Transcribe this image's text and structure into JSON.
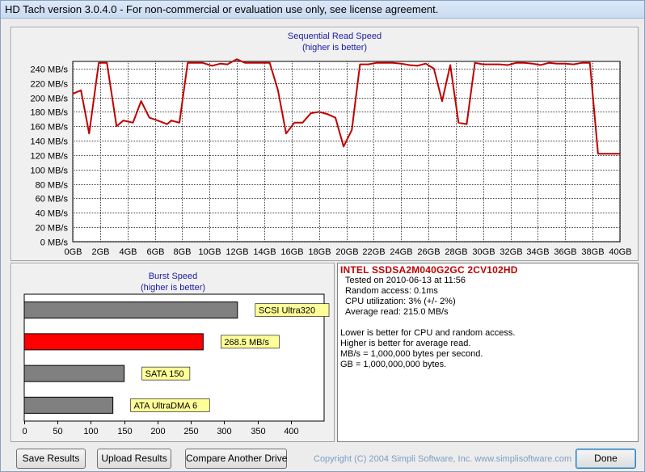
{
  "window": {
    "title": "HD Tach version 3.0.4.0  - For non-commercial or evaluation use only, see license agreement."
  },
  "sequential": {
    "title_line1": "Sequential Read Speed",
    "title_line2": "(higher is better)"
  },
  "burst": {
    "title_line1": "Burst Speed",
    "title_line2": "(higher is better)"
  },
  "info": {
    "drive_name": "INTEL SSDSA2M040G2GC 2CV102HD",
    "tested_on": "Tested on 2010-06-13 at 11:56",
    "random_access": "Random access: 0.1ms",
    "cpu_utilization": "CPU utilization: 3% (+/- 2%)",
    "average_read": "Average read: 215.0 MB/s",
    "note1": "Lower is better for CPU and random access.",
    "note2": "Higher is better for average read.",
    "note3": "MB/s = 1,000,000 bytes per second.",
    "note4": "GB = 1,000,000,000 bytes."
  },
  "buttons": {
    "save_results": "Save Results",
    "upload_results": "Upload Results",
    "compare_drive": "Compare Another Drive",
    "done": "Done"
  },
  "copyright": "Copyright (C) 2004 Simpli Software, Inc. www.simplisoftware.com",
  "colors": {
    "line": "#c00000",
    "bar_highlight": "#ff0000",
    "bar_reference": "#808080",
    "label_bg": "#ffff99",
    "grid": "#404040"
  },
  "chart_data": [
    {
      "type": "line",
      "title": "Sequential Read Speed",
      "subtitle": "(higher is better)",
      "xlabel": "",
      "ylabel": "",
      "x_unit": "GB",
      "y_unit": "MB/s",
      "xlim": [
        0,
        40
      ],
      "ylim": [
        0,
        250
      ],
      "x_ticks": [
        "0GB",
        "2GB",
        "4GB",
        "6GB",
        "8GB",
        "10GB",
        "12GB",
        "14GB",
        "16GB",
        "18GB",
        "20GB",
        "22GB",
        "24GB",
        "26GB",
        "28GB",
        "30GB",
        "32GB",
        "34GB",
        "36GB",
        "38GB",
        "40GB"
      ],
      "y_ticks": [
        "0 MB/s",
        "20 MB/s",
        "40 MB/s",
        "60 MB/s",
        "80 MB/s",
        "100 MB/s",
        "120 MB/s",
        "140 MB/s",
        "160 MB/s",
        "180 MB/s",
        "200 MB/s",
        "220 MB/s",
        "240 MB/s"
      ],
      "grid": true,
      "series": [
        {
          "x": [
            0,
            0.6,
            1.2,
            1.9,
            2.5,
            3.2,
            3.7,
            4.4,
            5.0,
            5.6,
            6.2,
            6.9,
            7.2,
            7.8,
            8.4,
            9.0,
            9.5,
            10.2,
            10.8,
            11.3,
            12.0,
            12.6,
            13.2,
            13.8,
            14.4,
            15.0,
            15.6,
            16.2,
            16.8,
            17.4,
            18.0,
            18.6,
            19.2,
            19.8,
            20.4,
            21.0,
            21.6,
            22.2,
            22.8,
            23.4,
            24.0,
            24.6,
            25.2,
            25.8,
            26.4,
            27.0,
            27.6,
            28.2,
            28.8,
            29.4,
            30.0,
            30.6,
            31.2,
            31.8,
            32.4,
            33.0,
            33.6,
            34.2,
            34.8,
            35.4,
            36.0,
            36.6,
            37.2,
            37.8,
            38.4,
            39.0,
            39.5,
            40.0
          ],
          "y": [
            205,
            210,
            150,
            248,
            248,
            160,
            168,
            165,
            195,
            172,
            168,
            163,
            168,
            165,
            248,
            248,
            248,
            244,
            247,
            246,
            253,
            248,
            248,
            248,
            248,
            210,
            150,
            165,
            165,
            178,
            180,
            177,
            172,
            132,
            155,
            246,
            246,
            248,
            248,
            248,
            247,
            245,
            244,
            247,
            240,
            195,
            245,
            165,
            163,
            248,
            246,
            246,
            246,
            245,
            248,
            248,
            247,
            245,
            248,
            247,
            247,
            246,
            248,
            248,
            122,
            122,
            122,
            122
          ]
        }
      ]
    },
    {
      "type": "bar",
      "orientation": "horizontal",
      "title": "Burst Speed",
      "subtitle": "(higher is better)",
      "xlim": [
        0,
        450
      ],
      "x_ticks": [
        "0",
        "50",
        "100",
        "150",
        "200",
        "250",
        "300",
        "350",
        "400"
      ],
      "grid": false,
      "categories": [
        "SCSI Ultra320",
        "268.5 MB/s",
        "SATA 150",
        "ATA UltraDMA 6"
      ],
      "values": [
        320,
        268.5,
        150,
        133
      ],
      "highlighted": [
        false,
        true,
        false,
        false
      ]
    }
  ]
}
